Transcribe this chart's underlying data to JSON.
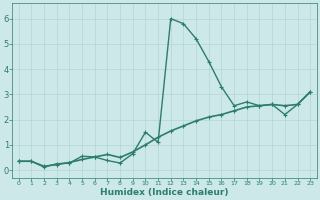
{
  "xlabel": "Humidex (Indice chaleur)",
  "xlim": [
    -0.5,
    23.5
  ],
  "ylim": [
    -0.3,
    6.6
  ],
  "xticks": [
    0,
    1,
    2,
    3,
    4,
    5,
    6,
    7,
    8,
    9,
    10,
    11,
    12,
    13,
    14,
    15,
    16,
    17,
    18,
    19,
    20,
    21,
    22,
    23
  ],
  "yticks": [
    0,
    1,
    2,
    3,
    4,
    5,
    6
  ],
  "background_color": "#cce8e8",
  "grid_color": "#b8d8d8",
  "line_color": "#2d7d6e",
  "x": [
    0,
    1,
    2,
    3,
    4,
    5,
    6,
    7,
    8,
    9,
    10,
    11,
    12,
    13,
    14,
    15,
    16,
    17,
    18,
    19,
    20,
    21,
    22,
    23
  ],
  "y_curve": [
    0.35,
    0.35,
    0.12,
    0.25,
    0.28,
    0.55,
    0.52,
    0.38,
    0.28,
    0.65,
    1.5,
    1.1,
    6.0,
    5.8,
    5.2,
    4.3,
    3.3,
    2.55,
    2.7,
    2.55,
    2.6,
    2.2,
    2.6,
    3.1
  ],
  "y_trend": [
    0.35,
    0.35,
    0.15,
    0.22,
    0.3,
    0.42,
    0.52,
    0.62,
    0.5,
    0.72,
    1.0,
    1.3,
    1.55,
    1.75,
    1.95,
    2.1,
    2.2,
    2.35,
    2.5,
    2.55,
    2.6,
    2.55,
    2.6,
    3.1
  ]
}
